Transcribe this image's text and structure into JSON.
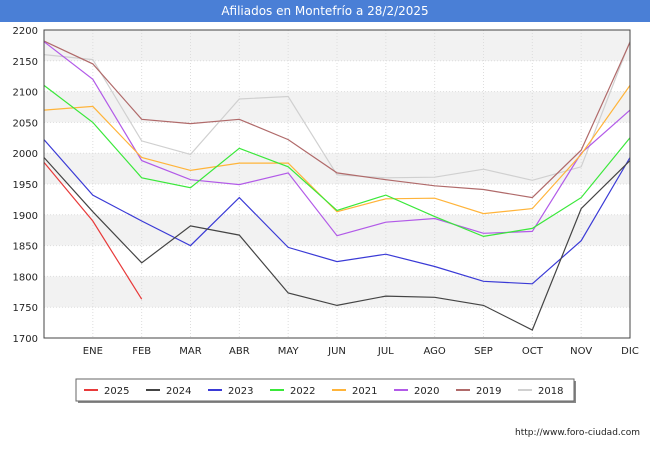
{
  "header": {
    "title": "Afiliados en Montefrío a 28/2/2025"
  },
  "footer": {
    "url": "http://www.foro-ciudad.com"
  },
  "chart_data": {
    "type": "line",
    "title": "Afiliados en Montefrío a 28/2/2025",
    "xlabel": "",
    "ylabel": "",
    "categories": [
      "",
      "ENE",
      "FEB",
      "MAR",
      "ABR",
      "MAY",
      "JUN",
      "JUL",
      "AGO",
      "SEP",
      "OCT",
      "NOV",
      "DIC"
    ],
    "ylim": [
      1700,
      2200
    ],
    "yticks": [
      1700,
      1750,
      1800,
      1850,
      1900,
      1950,
      2000,
      2050,
      2100,
      2150,
      2200
    ],
    "grid": true,
    "legend_position": "bottom",
    "series": [
      {
        "name": "2025",
        "color": "#e83a3a",
        "values": [
          1985,
          1890,
          1763,
          null,
          null,
          null,
          null,
          null,
          null,
          null,
          null,
          null,
          null
        ]
      },
      {
        "name": "2024",
        "color": "#444444",
        "values": [
          1993,
          1905,
          1822,
          1882,
          1867,
          1773,
          1753,
          1768,
          1766,
          1753,
          1713,
          1910,
          1988
        ]
      },
      {
        "name": "2023",
        "color": "#3a3ad6",
        "values": [
          2022,
          1932,
          1890,
          1850,
          1928,
          1847,
          1824,
          1836,
          1816,
          1792,
          1788,
          1858,
          1993
        ]
      },
      {
        "name": "2022",
        "color": "#3ae83a",
        "values": [
          2110,
          2050,
          1960,
          1944,
          2008,
          1978,
          1907,
          1932,
          1897,
          1865,
          1878,
          1928,
          2025
        ]
      },
      {
        "name": "2021",
        "color": "#ffb43a",
        "values": [
          2070,
          2076,
          1993,
          1972,
          1984,
          1984,
          1905,
          1926,
          1927,
          1902,
          1910,
          1998,
          2110
        ]
      },
      {
        "name": "2020",
        "color": "#b25ae8",
        "values": [
          2181,
          2120,
          1988,
          1957,
          1949,
          1968,
          1866,
          1888,
          1894,
          1870,
          1873,
          2000,
          2070
        ]
      },
      {
        "name": "2019",
        "color": "#b06a6a",
        "values": [
          2182,
          2145,
          2055,
          2048,
          2055,
          2022,
          1968,
          1957,
          1947,
          1941,
          1928,
          2005,
          2180
        ]
      },
      {
        "name": "2018",
        "color": "#d0d0d0",
        "values": [
          2160,
          2152,
          2020,
          1998,
          2088,
          2092,
          1965,
          1960,
          1961,
          1974,
          1956,
          1978,
          2182
        ]
      }
    ]
  }
}
